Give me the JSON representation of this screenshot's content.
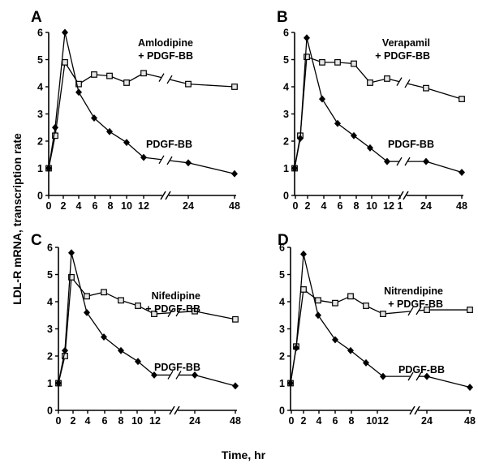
{
  "figure": {
    "y_axis_title": "LDL-R mRNA, transcription rate",
    "x_axis_title": "Time, hr"
  },
  "chart_data": [
    {
      "type": "line",
      "panel": "A",
      "xlabel": "Time, hr",
      "ylabel": "LDL-R mRNA, transcription rate",
      "ylim": [
        0,
        6
      ],
      "yticks": [
        0,
        1,
        2,
        3,
        4,
        5,
        6
      ],
      "xtick_labels": [
        "0",
        "2",
        "4",
        "6",
        "8",
        "10",
        "12",
        "24",
        "48"
      ],
      "axis_break": "between 12 and 24 hr",
      "series": [
        {
          "name": "Amlodipine + PDGF-BB",
          "label_lines": [
            "Amlodipine",
            "+ PDGF-BB"
          ],
          "marker": "open-square",
          "x": [
            0,
            1,
            2,
            4,
            6,
            8,
            10,
            12,
            24,
            48
          ],
          "y": [
            1.0,
            2.2,
            4.9,
            4.1,
            4.45,
            4.4,
            4.15,
            4.5,
            4.1,
            4.0
          ]
        },
        {
          "name": "PDGF-BB",
          "label_lines": [
            "PDGF-BB"
          ],
          "marker": "filled-diamond",
          "x": [
            0,
            1,
            2,
            4,
            6,
            8,
            10,
            12,
            24,
            48
          ],
          "y": [
            1.0,
            2.5,
            6.0,
            3.8,
            2.85,
            2.35,
            1.95,
            1.4,
            1.2,
            0.8
          ]
        }
      ]
    },
    {
      "type": "line",
      "panel": "B",
      "xlabel": "Time, hr",
      "ylabel": "LDL-R mRNA, transcription rate",
      "ylim": [
        0,
        6
      ],
      "yticks": [
        0,
        1,
        2,
        3,
        4,
        5,
        6
      ],
      "xtick_labels": [
        "0",
        "2",
        "4",
        "6",
        "8",
        "10",
        "12",
        "1",
        "24",
        "48"
      ],
      "axis_break": "between 12 and 24 hr",
      "series": [
        {
          "name": "Verapamil + PDGF-BB",
          "label_lines": [
            "Verapamil",
            "+ PDGF-BB"
          ],
          "marker": "open-square",
          "x": [
            0,
            1,
            2,
            4,
            6,
            8,
            10,
            12,
            24,
            48
          ],
          "y": [
            1.0,
            2.2,
            5.1,
            4.9,
            4.9,
            4.85,
            4.15,
            4.3,
            3.95,
            3.55
          ]
        },
        {
          "name": "PDGF-BB",
          "label_lines": [
            "PDGF-BB"
          ],
          "marker": "filled-diamond",
          "x": [
            0,
            1,
            2,
            4,
            6,
            8,
            10,
            12,
            24,
            48
          ],
          "y": [
            1.0,
            2.1,
            5.8,
            3.55,
            2.65,
            2.2,
            1.75,
            1.25,
            1.25,
            0.85
          ]
        }
      ]
    },
    {
      "type": "line",
      "panel": "C",
      "xlabel": "Time, hr",
      "ylabel": "LDL-R mRNA, transcription rate",
      "ylim": [
        0,
        6
      ],
      "yticks": [
        0,
        1,
        2,
        3,
        4,
        5,
        6
      ],
      "xtick_labels": [
        "0",
        "2",
        "4",
        "6",
        "8",
        "10",
        "12",
        "24",
        "48"
      ],
      "axis_break": "between 12 and 24 hr",
      "series": [
        {
          "name": "Nifedipine + PDGF-BB",
          "label_lines": [
            "Nifedipine",
            "+ PDGF-BB"
          ],
          "marker": "open-square",
          "x": [
            0,
            1,
            2,
            4,
            6,
            8,
            10,
            12,
            24,
            48
          ],
          "y": [
            1.0,
            2.0,
            4.9,
            4.2,
            4.35,
            4.05,
            3.85,
            3.55,
            3.65,
            3.35
          ]
        },
        {
          "name": "PDGF-BB",
          "label_lines": [
            "PDGF-BB"
          ],
          "marker": "filled-diamond",
          "x": [
            0,
            1,
            2,
            4,
            6,
            8,
            10,
            12,
            24,
            48
          ],
          "y": [
            1.0,
            2.2,
            5.8,
            3.6,
            2.7,
            2.2,
            1.8,
            1.3,
            1.3,
            0.9
          ]
        }
      ]
    },
    {
      "type": "line",
      "panel": "D",
      "xlabel": "Time, hr",
      "ylabel": "LDL-R mRNA, transcription rate",
      "ylim": [
        0,
        6
      ],
      "yticks": [
        0,
        1,
        2,
        3,
        4,
        5,
        6
      ],
      "xtick_labels": [
        "0",
        "2",
        "4",
        "6",
        "8",
        "1012",
        "24",
        "48"
      ],
      "axis_break": "between 12 and 24 hr",
      "series": [
        {
          "name": "Nitrendipine + PDGF-BB",
          "label_lines": [
            "Nitrendipine",
            "+ PDGF-BB"
          ],
          "marker": "open-square",
          "x": [
            0,
            1,
            2,
            4,
            6,
            8,
            10,
            12,
            24,
            48
          ],
          "y": [
            1.0,
            2.35,
            4.45,
            4.05,
            3.95,
            4.2,
            3.85,
            3.55,
            3.7,
            3.7
          ]
        },
        {
          "name": "PDGF-BB",
          "label_lines": [
            "PDGF-BB"
          ],
          "marker": "filled-diamond",
          "x": [
            0,
            1,
            2,
            4,
            6,
            8,
            10,
            12,
            24,
            48
          ],
          "y": [
            1.0,
            2.3,
            5.75,
            3.5,
            2.6,
            2.2,
            1.75,
            1.25,
            1.25,
            0.85
          ]
        }
      ]
    }
  ]
}
